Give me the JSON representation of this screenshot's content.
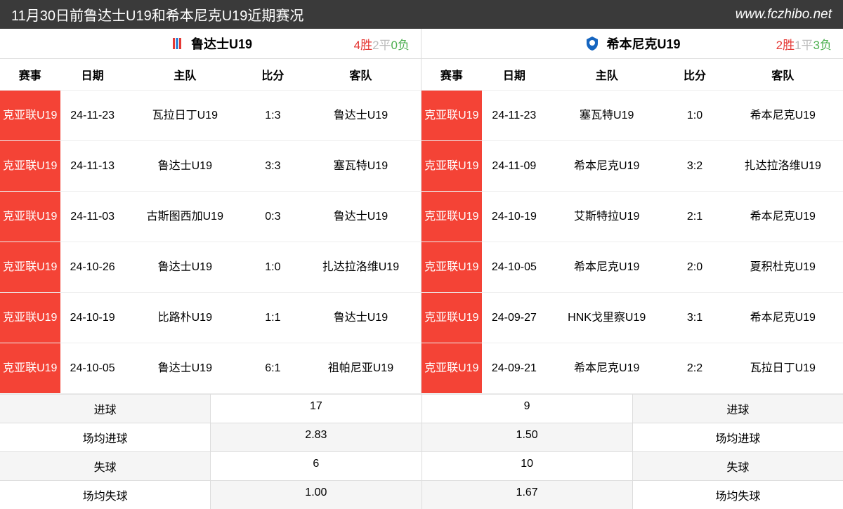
{
  "header": {
    "title": "11月30日前鲁达士U19和希本尼克U19近期赛况",
    "url": "www.fczhibo.net"
  },
  "colors": {
    "header_bg": "#3a3a3a",
    "comp_bg": "#f44336",
    "win": "#e53935",
    "draw": "#bbbbbb",
    "loss": "#4caf50"
  },
  "columns": {
    "comp": "赛事",
    "date": "日期",
    "home": "主队",
    "score": "比分",
    "away": "客队"
  },
  "left": {
    "team": "鲁达士U19",
    "record": {
      "w_n": "4",
      "w_l": "胜",
      "d_n": "2",
      "d_l": "平",
      "l_n": "0",
      "l_l": "负"
    },
    "rows": [
      {
        "comp": "克亚联U19",
        "date": "24-11-23",
        "home": "瓦拉日丁U19",
        "score": "1:3",
        "away": "鲁达士U19"
      },
      {
        "comp": "克亚联U19",
        "date": "24-11-13",
        "home": "鲁达士U19",
        "score": "3:3",
        "away": "塞瓦特U19"
      },
      {
        "comp": "克亚联U19",
        "date": "24-11-03",
        "home": "古斯图西加U19",
        "score": "0:3",
        "away": "鲁达士U19"
      },
      {
        "comp": "克亚联U19",
        "date": "24-10-26",
        "home": "鲁达士U19",
        "score": "1:0",
        "away": "扎达拉洛维U19"
      },
      {
        "comp": "克亚联U19",
        "date": "24-10-19",
        "home": "比路朴U19",
        "score": "1:1",
        "away": "鲁达士U19"
      },
      {
        "comp": "克亚联U19",
        "date": "24-10-05",
        "home": "鲁达士U19",
        "score": "6:1",
        "away": "祖帕尼亚U19"
      }
    ]
  },
  "right": {
    "team": "希本尼克U19",
    "record": {
      "w_n": "2",
      "w_l": "胜",
      "d_n": "1",
      "d_l": "平",
      "l_n": "3",
      "l_l": "负"
    },
    "rows": [
      {
        "comp": "克亚联U19",
        "date": "24-11-23",
        "home": "塞瓦特U19",
        "score": "1:0",
        "away": "希本尼克U19"
      },
      {
        "comp": "克亚联U19",
        "date": "24-11-09",
        "home": "希本尼克U19",
        "score": "3:2",
        "away": "扎达拉洛维U19"
      },
      {
        "comp": "克亚联U19",
        "date": "24-10-19",
        "home": "艾斯特拉U19",
        "score": "2:1",
        "away": "希本尼克U19"
      },
      {
        "comp": "克亚联U19",
        "date": "24-10-05",
        "home": "希本尼克U19",
        "score": "2:0",
        "away": "夏积杜克U19"
      },
      {
        "comp": "克亚联U19",
        "date": "24-09-27",
        "home": "HNK戈里察U19",
        "score": "3:1",
        "away": "希本尼克U19"
      },
      {
        "comp": "克亚联U19",
        "date": "24-09-21",
        "home": "希本尼克U19",
        "score": "2:2",
        "away": "瓦拉日丁U19"
      }
    ]
  },
  "summary": {
    "labels": {
      "goals": "进球",
      "avg_goals": "场均进球",
      "conceded": "失球",
      "avg_conceded": "场均失球"
    },
    "left": {
      "goals": "17",
      "avg_goals": "2.83",
      "conceded": "6",
      "avg_conceded": "1.00"
    },
    "right": {
      "goals": "9",
      "avg_goals": "1.50",
      "conceded": "10",
      "avg_conceded": "1.67"
    }
  }
}
